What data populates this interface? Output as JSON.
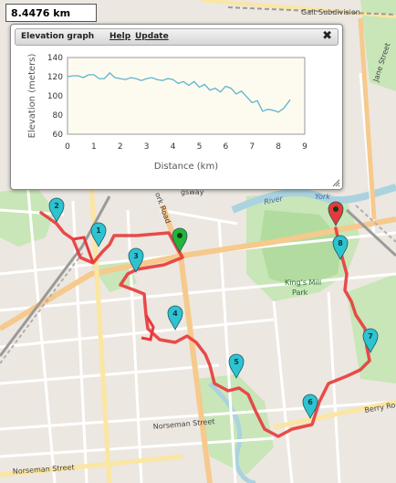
{
  "distance_readout": "8.4476 km",
  "elevation_panel": {
    "title": "Elevation graph",
    "help_label": "Help",
    "update_label": "Update",
    "close_glyph": "✖"
  },
  "chart_data": {
    "type": "line",
    "xlabel": "Distance (km)",
    "ylabel": "Elevation (meters)",
    "xlim": [
      0,
      9
    ],
    "ylim": [
      60,
      140
    ],
    "xticks": [
      0,
      1,
      2,
      3,
      4,
      5,
      6,
      7,
      8,
      9
    ],
    "yticks": [
      60,
      80,
      100,
      120,
      140
    ],
    "grid": false,
    "series": [
      {
        "color": "#5fb3d0",
        "x": [
          0,
          0.2,
          0.4,
          0.6,
          0.8,
          1.0,
          1.2,
          1.4,
          1.6,
          1.8,
          2.0,
          2.2,
          2.4,
          2.6,
          2.8,
          3.0,
          3.2,
          3.4,
          3.6,
          3.8,
          4.0,
          4.2,
          4.4,
          4.6,
          4.8,
          5.0,
          5.2,
          5.4,
          5.6,
          5.8,
          6.0,
          6.2,
          6.4,
          6.6,
          6.8,
          7.0,
          7.2,
          7.4,
          7.6,
          7.8,
          8.0,
          8.2,
          8.45
        ],
        "y": [
          120,
          121,
          121,
          119,
          122,
          122,
          118,
          118,
          124,
          119,
          118,
          117,
          119,
          118,
          116,
          118,
          119,
          117,
          116,
          118,
          117,
          113,
          115,
          111,
          115,
          109,
          112,
          106,
          108,
          104,
          110,
          108,
          102,
          105,
          99,
          93,
          95,
          84,
          86,
          85,
          83,
          87,
          96
        ]
      }
    ]
  },
  "map": {
    "street_labels": [
      "Galt Subdivision",
      "Jane Street",
      "Norseman Street",
      "Berry Road",
      "Norseman Street"
    ],
    "park_label": [
      "King's Mill",
      "Park"
    ],
    "river_labels": [
      "River",
      "York"
    ],
    "road_label_fragments": [
      "ork Road",
      "gsway"
    ],
    "waypoints": [
      "1",
      "2",
      "3",
      "4",
      "5",
      "6",
      "7",
      "8"
    ],
    "colors": {
      "route": "#e8393a",
      "waypoint": "#2ec3d1",
      "start": "#27b33a",
      "end": "#e8393a",
      "rail": "#9a9a9a",
      "arterial": "#f6c98d",
      "park": "#b9dfad",
      "water": "#aad3df"
    }
  }
}
